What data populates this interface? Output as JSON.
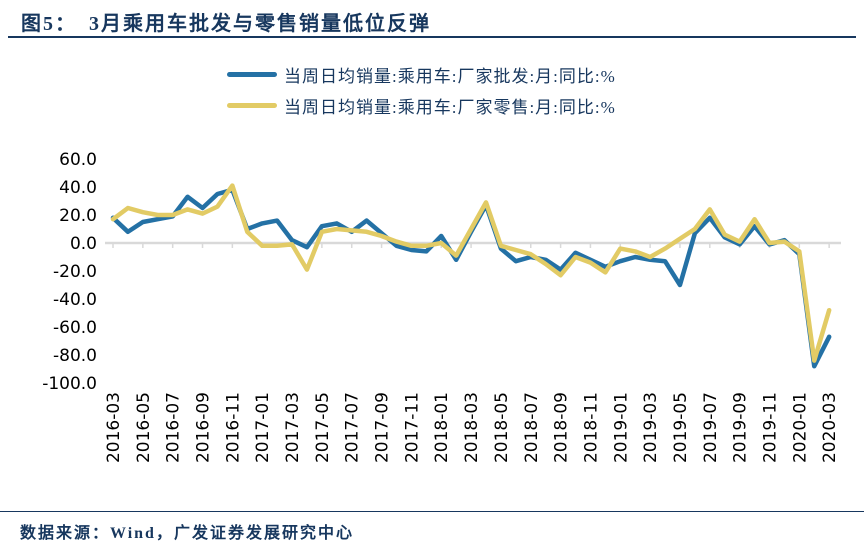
{
  "header": {
    "figure_label": "图5：",
    "title": "3月乘用车批发与零售销量低位反弹"
  },
  "footer": {
    "text": "数据来源：Wind，广发证券发展研究中心"
  },
  "colors": {
    "navy_text": "#17375E",
    "wholesale_blue": "#2471A5",
    "retail_yellow": "#E2CB65",
    "axis_gray": "#D9D9D9",
    "tick_label_black": "#000000"
  },
  "chart_data": {
    "type": "line",
    "title": "3月乘用车批发与零售销量低位反弹",
    "legend_position": "top-center",
    "grid": "zero-line-only",
    "ylim": [
      -100,
      60
    ],
    "y_ticks": [
      60,
      40,
      20,
      0,
      -20,
      -40,
      -60,
      -80,
      -100
    ],
    "y_tick_labels": [
      "60.0",
      "40.0",
      "20.0",
      "0.0",
      "-20.0",
      "-40.0",
      "-60.0",
      "-80.0",
      "-100.0"
    ],
    "x_tick_every": 2,
    "categories": [
      "2016-03",
      "2016-04",
      "2016-05",
      "2016-06",
      "2016-07",
      "2016-08",
      "2016-09",
      "2016-10",
      "2016-11",
      "2016-12",
      "2017-01",
      "2017-02",
      "2017-03",
      "2017-04",
      "2017-05",
      "2017-06",
      "2017-07",
      "2017-08",
      "2017-09",
      "2017-10",
      "2017-11",
      "2017-12",
      "2018-01",
      "2018-02",
      "2018-03",
      "2018-04",
      "2018-05",
      "2018-06",
      "2018-07",
      "2018-08",
      "2018-09",
      "2018-10",
      "2018-11",
      "2018-12",
      "2019-01",
      "2019-02",
      "2019-03",
      "2019-04",
      "2019-05",
      "2019-06",
      "2019-07",
      "2019-08",
      "2019-09",
      "2019-10",
      "2019-11",
      "2019-12",
      "2020-01",
      "2020-02",
      "2020-03"
    ],
    "series": [
      {
        "name": "当周日均销量:乘用车:厂家批发:月:同比:%",
        "color": "#2471A5",
        "values": [
          18,
          8,
          15,
          17,
          19,
          33,
          25,
          35,
          38,
          10,
          14,
          16,
          2,
          -3,
          12,
          14,
          8,
          16,
          7,
          -2,
          -5,
          -6,
          5,
          -12,
          8,
          27,
          -4,
          -13,
          -10,
          -12,
          -19,
          -7,
          -12,
          -17,
          -13,
          -10,
          -12,
          -13,
          -30,
          7,
          18,
          4,
          -1,
          12,
          -1,
          2,
          -8,
          -88,
          -67
        ]
      },
      {
        "name": "当周日均销量:乘用车:厂家零售:月:同比:%",
        "color": "#E2CB65",
        "values": [
          17,
          25,
          22,
          20,
          20,
          24,
          21,
          26,
          41,
          8,
          -2,
          -2,
          -1,
          -19,
          8,
          10,
          9,
          8,
          5,
          1,
          -2,
          -2,
          0,
          -9,
          10,
          29,
          -2,
          -5,
          -8,
          -15,
          -23,
          -10,
          -14,
          -21,
          -4,
          -6,
          -10,
          -4,
          3,
          10,
          24,
          6,
          1,
          17,
          0,
          1,
          -6,
          -84,
          -48
        ]
      }
    ]
  }
}
